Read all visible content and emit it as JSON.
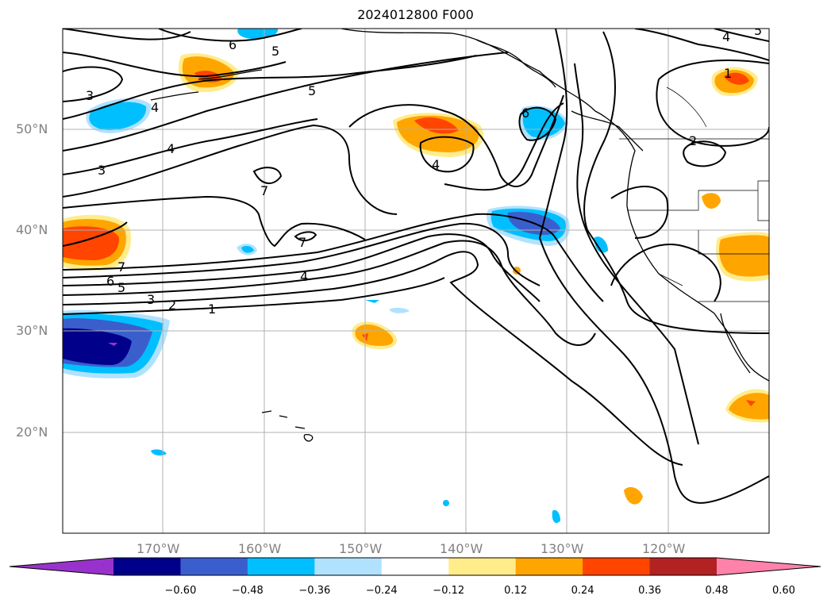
{
  "title": "2024012800 F000",
  "lat_labels": [
    "50°N",
    "40°N",
    "30°N",
    "20°N"
  ],
  "lon_labels": [
    "170°W",
    "160°W",
    "150°W",
    "140°W",
    "130°W",
    "120°W"
  ],
  "contour_labels": [
    "6",
    "5",
    "5",
    "4",
    "3",
    "3",
    "4",
    "5",
    "4",
    "6",
    "1",
    "2",
    "7",
    "7",
    "7",
    "6",
    "5",
    "3",
    "2",
    "1",
    "4",
    "4"
  ],
  "colorbar": {
    "colors": [
      "#9932cc",
      "#00008b",
      "#3a5fcd",
      "#00bfff",
      "#b0e2ff",
      "#ffffff",
      "#ffec8b",
      "#ffa500",
      "#ff4500",
      "#b22222",
      "#ff82ab"
    ],
    "tick_labels": [
      "−0.60",
      "−0.48",
      "−0.36",
      "−0.24",
      "−0.12",
      "0.12",
      "0.24",
      "0.36",
      "0.48",
      "0.60"
    ]
  }
}
